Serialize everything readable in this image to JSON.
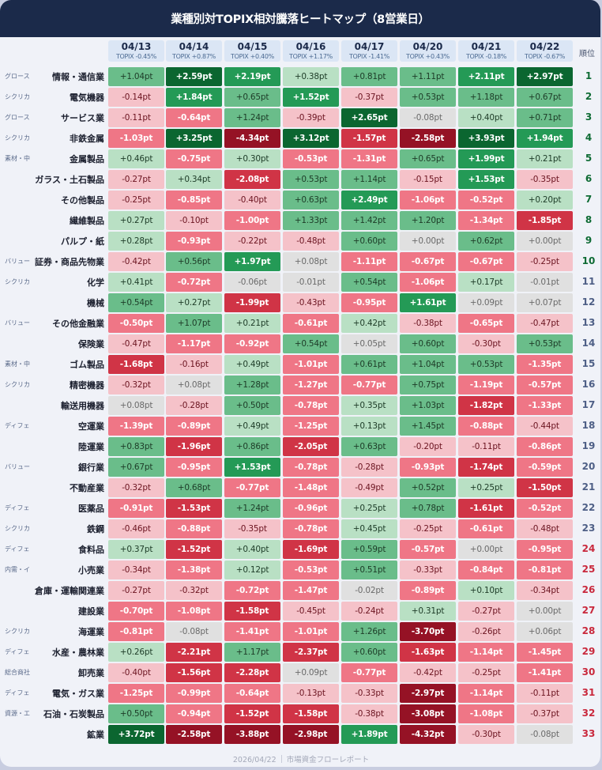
{
  "header": {
    "title": "業種別対TOPIX相対騰落ヒートマップ（8営業日）"
  },
  "columns": [
    {
      "date": "04/13",
      "topix": "TOPIX -0.45%"
    },
    {
      "date": "04/14",
      "topix": "TOPIX +0.87%"
    },
    {
      "date": "04/15",
      "topix": "TOPIX +0.40%"
    },
    {
      "date": "04/16",
      "topix": "TOPIX +1.17%"
    },
    {
      "date": "04/17",
      "topix": "TOPIX -1.41%"
    },
    {
      "date": "04/20",
      "topix": "TOPIX +0.43%"
    },
    {
      "date": "04/21",
      "topix": "TOPIX -0.18%"
    },
    {
      "date": "04/22",
      "topix": "TOPIX -0.67%"
    }
  ],
  "rank_header": "順位",
  "rows": [
    {
      "tag": "グロース",
      "sector": "情報・通信業",
      "rank": "1",
      "values": [
        "+1.04pt",
        "+2.59pt",
        "+2.19pt",
        "+0.38pt",
        "+0.81pt",
        "+1.11pt",
        "+2.11pt",
        "+2.97pt"
      ]
    },
    {
      "tag": "シクリカ",
      "sector": "電気機器",
      "rank": "2",
      "values": [
        "-0.14pt",
        "+1.84pt",
        "+0.65pt",
        "+1.52pt",
        "-0.37pt",
        "+0.53pt",
        "+1.18pt",
        "+0.67pt"
      ]
    },
    {
      "tag": "グロース",
      "sector": "サービス業",
      "rank": "3",
      "values": [
        "-0.11pt",
        "-0.64pt",
        "+1.24pt",
        "-0.39pt",
        "+2.65pt",
        "-0.08pt",
        "+0.40pt",
        "+0.71pt"
      ]
    },
    {
      "tag": "シクリカ",
      "sector": "非鉄金属",
      "rank": "4",
      "values": [
        "-1.03pt",
        "+3.25pt",
        "-4.34pt",
        "+3.12pt",
        "-1.57pt",
        "-2.58pt",
        "+3.93pt",
        "+1.94pt"
      ]
    },
    {
      "tag": "素材・中",
      "sector": "金属製品",
      "rank": "5",
      "values": [
        "+0.46pt",
        "-0.75pt",
        "+0.30pt",
        "-0.53pt",
        "-1.31pt",
        "+0.65pt",
        "+1.99pt",
        "+0.21pt"
      ]
    },
    {
      "tag": "",
      "sector": "ガラス・土石製品",
      "rank": "6",
      "values": [
        "-0.27pt",
        "+0.34pt",
        "-2.08pt",
        "+0.53pt",
        "+1.14pt",
        "-0.15pt",
        "+1.53pt",
        "-0.35pt"
      ]
    },
    {
      "tag": "",
      "sector": "その他製品",
      "rank": "7",
      "values": [
        "-0.25pt",
        "-0.85pt",
        "-0.40pt",
        "+0.63pt",
        "+2.49pt",
        "-1.06pt",
        "-0.52pt",
        "+0.20pt"
      ]
    },
    {
      "tag": "",
      "sector": "繊維製品",
      "rank": "8",
      "values": [
        "+0.27pt",
        "-0.10pt",
        "-1.00pt",
        "+1.33pt",
        "+1.42pt",
        "+1.20pt",
        "-1.34pt",
        "-1.85pt"
      ]
    },
    {
      "tag": "",
      "sector": "パルプ・紙",
      "rank": "9",
      "values": [
        "+0.28pt",
        "-0.93pt",
        "-0.22pt",
        "-0.48pt",
        "+0.60pt",
        "+0.00pt",
        "+0.62pt",
        "+0.00pt"
      ]
    },
    {
      "tag": "バリュー",
      "sector": "証券・商品先物業",
      "rank": "10",
      "values": [
        "-0.42pt",
        "+0.56pt",
        "+1.97pt",
        "+0.08pt",
        "-1.11pt",
        "-0.67pt",
        "-0.67pt",
        "-0.25pt"
      ]
    },
    {
      "tag": "シクリカ",
      "sector": "化学",
      "rank": "11",
      "values": [
        "+0.41pt",
        "-0.72pt",
        "-0.06pt",
        "-0.01pt",
        "+0.54pt",
        "-1.06pt",
        "+0.17pt",
        "-0.01pt"
      ]
    },
    {
      "tag": "",
      "sector": "機械",
      "rank": "12",
      "values": [
        "+0.54pt",
        "+0.27pt",
        "-1.99pt",
        "-0.43pt",
        "-0.95pt",
        "+1.61pt",
        "+0.09pt",
        "+0.07pt"
      ]
    },
    {
      "tag": "バリュー",
      "sector": "その他金融業",
      "rank": "13",
      "values": [
        "-0.50pt",
        "+1.07pt",
        "+0.21pt",
        "-0.61pt",
        "+0.42pt",
        "-0.38pt",
        "-0.65pt",
        "-0.47pt"
      ]
    },
    {
      "tag": "",
      "sector": "保険業",
      "rank": "14",
      "values": [
        "-0.47pt",
        "-1.17pt",
        "-0.92pt",
        "+0.54pt",
        "+0.05pt",
        "+0.60pt",
        "-0.30pt",
        "+0.53pt"
      ]
    },
    {
      "tag": "素材・中",
      "sector": "ゴム製品",
      "rank": "15",
      "values": [
        "-1.68pt",
        "-0.16pt",
        "+0.49pt",
        "-1.01pt",
        "+0.61pt",
        "+1.04pt",
        "+0.53pt",
        "-1.35pt"
      ]
    },
    {
      "tag": "シクリカ",
      "sector": "精密機器",
      "rank": "16",
      "values": [
        "-0.32pt",
        "+0.08pt",
        "+1.28pt",
        "-1.27pt",
        "-0.77pt",
        "+0.75pt",
        "-1.19pt",
        "-0.57pt"
      ]
    },
    {
      "tag": "",
      "sector": "輸送用機器",
      "rank": "17",
      "values": [
        "+0.08pt",
        "-0.28pt",
        "+0.50pt",
        "-0.78pt",
        "+0.35pt",
        "+1.03pt",
        "-1.82pt",
        "-1.33pt"
      ]
    },
    {
      "tag": "ディフェ",
      "sector": "空運業",
      "rank": "18",
      "values": [
        "-1.39pt",
        "-0.89pt",
        "+0.49pt",
        "-1.25pt",
        "+0.13pt",
        "+1.45pt",
        "-0.88pt",
        "-0.44pt"
      ]
    },
    {
      "tag": "",
      "sector": "陸運業",
      "rank": "19",
      "values": [
        "+0.83pt",
        "-1.96pt",
        "+0.86pt",
        "-2.05pt",
        "+0.63pt",
        "-0.20pt",
        "-0.11pt",
        "-0.86pt"
      ]
    },
    {
      "tag": "バリュー",
      "sector": "銀行業",
      "rank": "20",
      "values": [
        "+0.67pt",
        "-0.95pt",
        "+1.53pt",
        "-0.78pt",
        "-0.28pt",
        "-0.93pt",
        "-1.74pt",
        "-0.59pt"
      ]
    },
    {
      "tag": "",
      "sector": "不動産業",
      "rank": "21",
      "values": [
        "-0.32pt",
        "+0.68pt",
        "-0.77pt",
        "-1.48pt",
        "-0.49pt",
        "+0.52pt",
        "+0.25pt",
        "-1.50pt"
      ]
    },
    {
      "tag": "ディフェ",
      "sector": "医薬品",
      "rank": "22",
      "values": [
        "-0.91pt",
        "-1.53pt",
        "+1.24pt",
        "-0.96pt",
        "+0.25pt",
        "+0.78pt",
        "-1.61pt",
        "-0.52pt"
      ]
    },
    {
      "tag": "シクリカ",
      "sector": "鉄鋼",
      "rank": "23",
      "values": [
        "-0.46pt",
        "-0.88pt",
        "-0.35pt",
        "-0.78pt",
        "+0.45pt",
        "-0.25pt",
        "-0.61pt",
        "-0.48pt"
      ]
    },
    {
      "tag": "ディフェ",
      "sector": "食料品",
      "rank": "24",
      "values": [
        "+0.37pt",
        "-1.52pt",
        "+0.40pt",
        "-1.69pt",
        "+0.59pt",
        "-0.57pt",
        "+0.00pt",
        "-0.95pt"
      ]
    },
    {
      "tag": "内需・イ",
      "sector": "小売業",
      "rank": "25",
      "values": [
        "-0.34pt",
        "-1.38pt",
        "+0.12pt",
        "-0.53pt",
        "+0.51pt",
        "-0.33pt",
        "-0.84pt",
        "-0.81pt"
      ]
    },
    {
      "tag": "",
      "sector": "倉庫・運輸関連業",
      "rank": "26",
      "values": [
        "-0.27pt",
        "-0.32pt",
        "-0.72pt",
        "-1.47pt",
        "-0.02pt",
        "-0.89pt",
        "+0.10pt",
        "-0.34pt"
      ]
    },
    {
      "tag": "",
      "sector": "建設業",
      "rank": "27",
      "values": [
        "-0.70pt",
        "-1.08pt",
        "-1.58pt",
        "-0.45pt",
        "-0.24pt",
        "+0.31pt",
        "-0.27pt",
        "+0.00pt"
      ]
    },
    {
      "tag": "シクリカ",
      "sector": "海運業",
      "rank": "28",
      "values": [
        "-0.81pt",
        "-0.08pt",
        "-1.41pt",
        "-1.01pt",
        "+1.26pt",
        "-3.70pt",
        "-0.26pt",
        "+0.06pt"
      ]
    },
    {
      "tag": "ディフェ",
      "sector": "水産・農林業",
      "rank": "29",
      "values": [
        "+0.26pt",
        "-2.21pt",
        "+1.17pt",
        "-2.37pt",
        "+0.60pt",
        "-1.63pt",
        "-1.14pt",
        "-1.45pt"
      ]
    },
    {
      "tag": "総合商社",
      "sector": "卸売業",
      "rank": "30",
      "values": [
        "-0.40pt",
        "-1.56pt",
        "-2.28pt",
        "+0.09pt",
        "-0.77pt",
        "-0.42pt",
        "-0.25pt",
        "-1.41pt"
      ]
    },
    {
      "tag": "ディフェ",
      "sector": "電気・ガス業",
      "rank": "31",
      "values": [
        "-1.25pt",
        "-0.99pt",
        "-0.64pt",
        "-0.13pt",
        "-0.33pt",
        "-2.97pt",
        "-1.14pt",
        "-0.11pt"
      ]
    },
    {
      "tag": "資源・エ",
      "sector": "石油・石炭製品",
      "rank": "32",
      "values": [
        "+0.50pt",
        "-0.94pt",
        "-1.52pt",
        "-1.58pt",
        "-0.38pt",
        "-3.08pt",
        "-1.08pt",
        "-0.37pt"
      ]
    },
    {
      "tag": "",
      "sector": "鉱業",
      "rank": "33",
      "values": [
        "+3.72pt",
        "-2.58pt",
        "-3.88pt",
        "-2.98pt",
        "+1.89pt",
        "-4.32pt",
        "-0.30pt",
        "-0.08pt"
      ]
    }
  ],
  "footer": {
    "date": "2026/04/22",
    "source": "市場資金フローレポート"
  },
  "colors": {
    "header_bg": "#1b2a4a",
    "rank_top": "#0e6b34",
    "rank_mid": "#4e5f86",
    "rank_bottom": "#c9283c",
    "scale": {
      "pos_strong": "#0b6630",
      "pos_high": "#249a56",
      "pos_mid": "#6abd8a",
      "pos_low": "#b9e0c4",
      "neutral": "#e0e0e0",
      "neg_low": "#f5c2c9",
      "neg_mid": "#ef7686",
      "neg_high": "#d03446",
      "neg_strong": "#951225"
    }
  },
  "chart_data": {
    "type": "heatmap",
    "title": "業種別対TOPIX相対騰落ヒートマップ（8営業日）",
    "x": [
      "04/13",
      "04/14",
      "04/15",
      "04/16",
      "04/17",
      "04/20",
      "04/21",
      "04/22"
    ],
    "x_sublabels": [
      "TOPIX -0.45%",
      "TOPIX +0.87%",
      "TOPIX +0.40%",
      "TOPIX +1.17%",
      "TOPIX -1.41%",
      "TOPIX +0.43%",
      "TOPIX -0.18%",
      "TOPIX -0.67%"
    ],
    "y": [
      "情報・通信業",
      "電気機器",
      "サービス業",
      "非鉄金属",
      "金属製品",
      "ガラス・土石製品",
      "その他製品",
      "繊維製品",
      "パルプ・紙",
      "証券・商品先物業",
      "化学",
      "機械",
      "その他金融業",
      "保険業",
      "ゴム製品",
      "精密機器",
      "輸送用機器",
      "空運業",
      "陸運業",
      "銀行業",
      "不動産業",
      "医薬品",
      "鉄鋼",
      "食料品",
      "小売業",
      "倉庫・運輸関連業",
      "建設業",
      "海運業",
      "水産・農林業",
      "卸売業",
      "電気・ガス業",
      "石油・石炭製品",
      "鉱業"
    ],
    "unit": "pt (relative to TOPIX)",
    "values": [
      [
        1.04,
        2.59,
        2.19,
        0.38,
        0.81,
        1.11,
        2.11,
        2.97
      ],
      [
        -0.14,
        1.84,
        0.65,
        1.52,
        -0.37,
        0.53,
        1.18,
        0.67
      ],
      [
        -0.11,
        -0.64,
        1.24,
        -0.39,
        2.65,
        -0.08,
        0.4,
        0.71
      ],
      [
        -1.03,
        3.25,
        -4.34,
        3.12,
        -1.57,
        -2.58,
        3.93,
        1.94
      ],
      [
        0.46,
        -0.75,
        0.3,
        -0.53,
        -1.31,
        0.65,
        1.99,
        0.21
      ],
      [
        -0.27,
        0.34,
        -2.08,
        0.53,
        1.14,
        -0.15,
        1.53,
        -0.35
      ],
      [
        -0.25,
        -0.85,
        -0.4,
        0.63,
        2.49,
        -1.06,
        -0.52,
        0.2
      ],
      [
        0.27,
        -0.1,
        -1.0,
        1.33,
        1.42,
        1.2,
        -1.34,
        -1.85
      ],
      [
        0.28,
        -0.93,
        -0.22,
        -0.48,
        0.6,
        0.0,
        0.62,
        0.0
      ],
      [
        -0.42,
        0.56,
        1.97,
        0.08,
        -1.11,
        -0.67,
        -0.67,
        -0.25
      ],
      [
        0.41,
        -0.72,
        -0.06,
        -0.01,
        0.54,
        -1.06,
        0.17,
        -0.01
      ],
      [
        0.54,
        0.27,
        -1.99,
        -0.43,
        -0.95,
        1.61,
        0.09,
        0.07
      ],
      [
        -0.5,
        1.07,
        0.21,
        -0.61,
        0.42,
        -0.38,
        -0.65,
        -0.47
      ],
      [
        -0.47,
        -1.17,
        -0.92,
        0.54,
        0.05,
        0.6,
        -0.3,
        0.53
      ],
      [
        -1.68,
        -0.16,
        0.49,
        -1.01,
        0.61,
        1.04,
        0.53,
        -1.35
      ],
      [
        -0.32,
        0.08,
        1.28,
        -1.27,
        -0.77,
        0.75,
        -1.19,
        -0.57
      ],
      [
        0.08,
        -0.28,
        0.5,
        -0.78,
        0.35,
        1.03,
        -1.82,
        -1.33
      ],
      [
        -1.39,
        -0.89,
        0.49,
        -1.25,
        0.13,
        1.45,
        -0.88,
        -0.44
      ],
      [
        0.83,
        -1.96,
        0.86,
        -2.05,
        0.63,
        -0.2,
        -0.11,
        -0.86
      ],
      [
        0.67,
        -0.95,
        1.53,
        -0.78,
        -0.28,
        -0.93,
        -1.74,
        -0.59
      ],
      [
        -0.32,
        0.68,
        -0.77,
        -1.48,
        -0.49,
        0.52,
        0.25,
        -1.5
      ],
      [
        -0.91,
        -1.53,
        1.24,
        -0.96,
        0.25,
        0.78,
        -1.61,
        -0.52
      ],
      [
        -0.46,
        -0.88,
        -0.35,
        -0.78,
        0.45,
        -0.25,
        -0.61,
        -0.48
      ],
      [
        0.37,
        -1.52,
        0.4,
        -1.69,
        0.59,
        -0.57,
        0.0,
        -0.95
      ],
      [
        -0.34,
        -1.38,
        0.12,
        -0.53,
        0.51,
        -0.33,
        -0.84,
        -0.81
      ],
      [
        -0.27,
        -0.32,
        -0.72,
        -1.47,
        -0.02,
        -0.89,
        0.1,
        -0.34
      ],
      [
        -0.7,
        -1.08,
        -1.58,
        -0.45,
        -0.24,
        0.31,
        -0.27,
        0.0
      ],
      [
        -0.81,
        -0.08,
        -1.41,
        -1.01,
        1.26,
        -3.7,
        -0.26,
        0.06
      ],
      [
        0.26,
        -2.21,
        1.17,
        -2.37,
        0.6,
        -1.63,
        -1.14,
        -1.45
      ],
      [
        -0.4,
        -1.56,
        -2.28,
        0.09,
        -0.77,
        -0.42,
        -0.25,
        -1.41
      ],
      [
        -1.25,
        -0.99,
        -0.64,
        -0.13,
        -0.33,
        -2.97,
        -1.14,
        -0.11
      ],
      [
        0.5,
        -0.94,
        -1.52,
        -1.58,
        -0.38,
        -3.08,
        -1.08,
        -0.37
      ],
      [
        3.72,
        -2.58,
        -3.88,
        -2.98,
        1.89,
        -4.32,
        -0.3,
        -0.08
      ]
    ],
    "ranks": [
      1,
      2,
      3,
      4,
      5,
      6,
      7,
      8,
      9,
      10,
      11,
      12,
      13,
      14,
      15,
      16,
      17,
      18,
      19,
      20,
      21,
      22,
      23,
      24,
      25,
      26,
      27,
      28,
      29,
      30,
      31,
      32,
      33
    ],
    "style_tags": [
      "グロース",
      "シクリカ",
      "グロース",
      "シクリカ",
      "素材・中",
      "",
      "",
      "",
      "",
      "バリュー",
      "シクリカ",
      "",
      "バリュー",
      "",
      "素材・中",
      "シクリカ",
      "",
      "ディフェ",
      "",
      "バリュー",
      "",
      "ディフェ",
      "シクリカ",
      "ディフェ",
      "内需・イ",
      "",
      "",
      "シクリカ",
      "ディフェ",
      "総合商社",
      "ディフェ",
      "資源・エ",
      ""
    ],
    "color_scale": "diverging green (positive) / red (negative), gray near zero",
    "legend": "none"
  }
}
